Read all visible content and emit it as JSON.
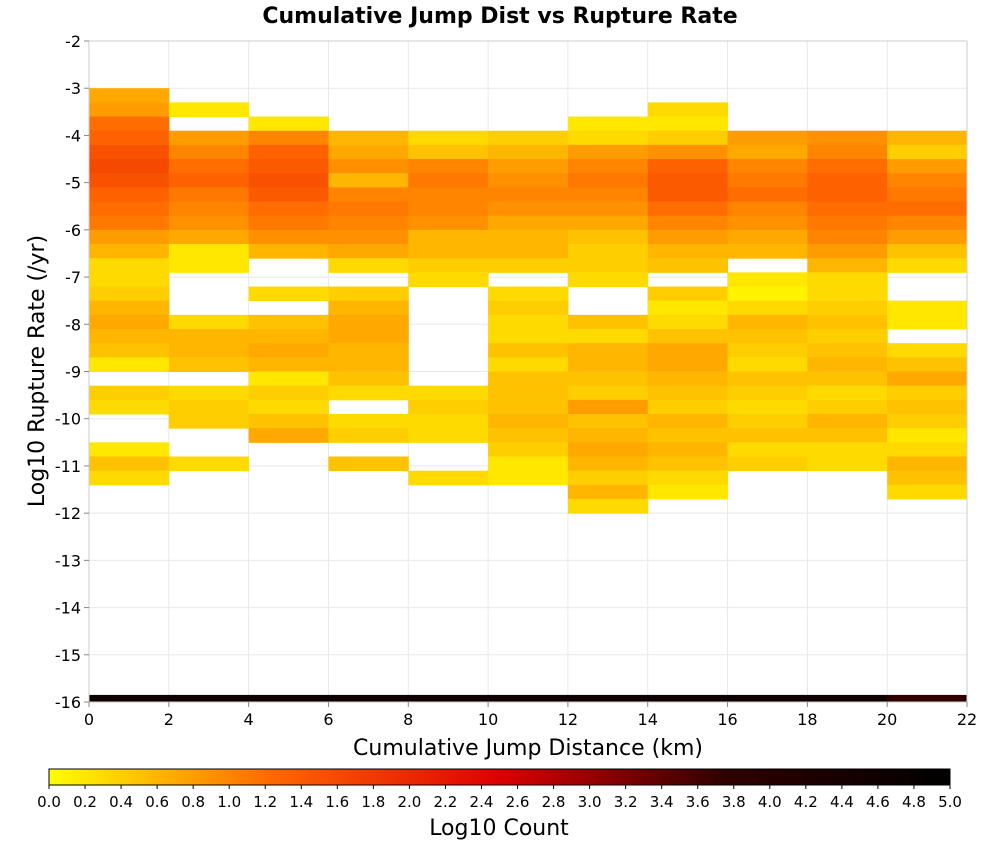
{
  "chart_data": {
    "type": "heatmap",
    "title": "Cumulative Jump Dist vs Rupture Rate",
    "xlabel": "Cumulative Jump Distance (km)",
    "ylabel": "Log10 Rupture Rate (/yr)",
    "colorbar_label": "Log10 Count",
    "xlim": [
      0,
      22
    ],
    "ylim": [
      -16,
      -2
    ],
    "xticks": [
      0,
      2,
      4,
      6,
      8,
      10,
      12,
      14,
      16,
      18,
      20,
      22
    ],
    "yticks": [
      -2,
      -3,
      -4,
      -5,
      -6,
      -7,
      -8,
      -9,
      -10,
      -11,
      -12,
      -13,
      -14,
      -15,
      -16
    ],
    "colorbar_range": [
      0,
      5
    ],
    "colorbar_ticks": [
      "0.0",
      "0.2",
      "0.4",
      "0.6",
      "0.8",
      "1.0",
      "1.2",
      "1.4",
      "1.6",
      "1.8",
      "2.0",
      "2.2",
      "2.4",
      "2.6",
      "2.8",
      "3.0",
      "3.2",
      "3.4",
      "3.6",
      "3.8",
      "4.0",
      "4.2",
      "4.4",
      "4.6",
      "4.8",
      "5.0"
    ],
    "colormap": [
      "#ffff00",
      "#ff6600",
      "#dd0000",
      "#300000",
      "#000000"
    ],
    "grid": true,
    "x_bin_width": 2,
    "y_bin_height": 0.3,
    "cells": [
      {
        "x": 0,
        "vals": [
          [
            -3.3,
            0.7
          ],
          [
            -3.6,
            0.8
          ],
          [
            -3.9,
            1.2
          ],
          [
            -4.2,
            1.3
          ],
          [
            -4.5,
            1.5
          ],
          [
            -4.8,
            1.6
          ],
          [
            -5.1,
            1.5
          ],
          [
            -5.4,
            1.3
          ],
          [
            -5.7,
            1.2
          ],
          [
            -6.0,
            1.1
          ],
          [
            -6.3,
            0.8
          ],
          [
            -6.6,
            0.6
          ],
          [
            -6.9,
            0.3
          ],
          [
            -7.2,
            0.3
          ],
          [
            -7.5,
            0.4
          ],
          [
            -7.8,
            0.6
          ],
          [
            -8.1,
            0.7
          ],
          [
            -8.4,
            0.6
          ],
          [
            -8.7,
            0.5
          ],
          [
            -9.0,
            0.2
          ],
          [
            -9.6,
            0.4
          ],
          [
            -9.9,
            0.3
          ],
          [
            -10.8,
            0.2
          ],
          [
            -11.1,
            0.5
          ],
          [
            -11.4,
            0.3
          ]
        ]
      },
      {
        "x": 2,
        "vals": [
          [
            -3.6,
            0.2
          ],
          [
            -4.2,
            0.8
          ],
          [
            -4.5,
            1.0
          ],
          [
            -4.8,
            1.2
          ],
          [
            -5.1,
            1.3
          ],
          [
            -5.4,
            1.1
          ],
          [
            -5.7,
            1.0
          ],
          [
            -6.0,
            0.9
          ],
          [
            -6.3,
            0.7
          ],
          [
            -6.6,
            0.2
          ],
          [
            -6.9,
            0.2
          ],
          [
            -8.1,
            0.3
          ],
          [
            -8.4,
            0.6
          ],
          [
            -8.7,
            0.6
          ],
          [
            -9.0,
            0.5
          ],
          [
            -9.6,
            0.3
          ],
          [
            -9.9,
            0.4
          ],
          [
            -10.2,
            0.4
          ],
          [
            -11.1,
            0.3
          ]
        ]
      },
      {
        "x": 4,
        "vals": [
          [
            -3.9,
            0.2
          ],
          [
            -4.2,
            1.0
          ],
          [
            -4.5,
            1.3
          ],
          [
            -4.8,
            1.4
          ],
          [
            -5.1,
            1.5
          ],
          [
            -5.4,
            1.4
          ],
          [
            -5.7,
            1.2
          ],
          [
            -6.0,
            1.1
          ],
          [
            -6.3,
            0.9
          ],
          [
            -6.6,
            0.6
          ],
          [
            -7.5,
            0.3
          ],
          [
            -8.1,
            0.5
          ],
          [
            -8.4,
            0.6
          ],
          [
            -8.7,
            0.7
          ],
          [
            -9.0,
            0.6
          ],
          [
            -9.3,
            0.2
          ],
          [
            -9.6,
            0.4
          ],
          [
            -9.9,
            0.3
          ],
          [
            -10.2,
            0.5
          ],
          [
            -10.5,
            0.7
          ]
        ]
      },
      {
        "x": 6,
        "vals": [
          [
            -4.2,
            0.6
          ],
          [
            -4.5,
            0.7
          ],
          [
            -4.8,
            0.9
          ],
          [
            -5.1,
            0.6
          ],
          [
            -5.4,
            1.0
          ],
          [
            -5.7,
            1.1
          ],
          [
            -6.0,
            1.0
          ],
          [
            -6.3,
            0.9
          ],
          [
            -6.6,
            0.7
          ],
          [
            -6.9,
            0.3
          ],
          [
            -7.5,
            0.4
          ],
          [
            -7.8,
            0.6
          ],
          [
            -8.1,
            0.7
          ],
          [
            -8.4,
            0.7
          ],
          [
            -8.7,
            0.6
          ],
          [
            -9.0,
            0.6
          ],
          [
            -9.3,
            0.5
          ],
          [
            -9.6,
            0.3
          ],
          [
            -10.2,
            0.3
          ],
          [
            -10.5,
            0.4
          ],
          [
            -11.1,
            0.5
          ]
        ]
      },
      {
        "x": 8,
        "vals": [
          [
            -4.2,
            0.3
          ],
          [
            -4.5,
            0.5
          ],
          [
            -4.8,
            1.0
          ],
          [
            -5.1,
            1.1
          ],
          [
            -5.4,
            1.0
          ],
          [
            -5.7,
            1.0
          ],
          [
            -6.0,
            0.9
          ],
          [
            -6.3,
            0.6
          ],
          [
            -6.6,
            0.6
          ],
          [
            -6.9,
            0.4
          ],
          [
            -7.2,
            0.3
          ],
          [
            -9.6,
            0.3
          ],
          [
            -9.9,
            0.4
          ],
          [
            -10.2,
            0.3
          ],
          [
            -10.5,
            0.3
          ],
          [
            -11.4,
            0.3
          ]
        ]
      },
      {
        "x": 10,
        "vals": [
          [
            -4.2,
            0.4
          ],
          [
            -4.5,
            0.6
          ],
          [
            -4.8,
            0.8
          ],
          [
            -5.1,
            0.9
          ],
          [
            -5.4,
            1.0
          ],
          [
            -5.7,
            0.9
          ],
          [
            -6.0,
            0.7
          ],
          [
            -6.3,
            0.6
          ],
          [
            -6.6,
            0.6
          ],
          [
            -6.9,
            0.4
          ],
          [
            -7.5,
            0.3
          ],
          [
            -7.8,
            0.4
          ],
          [
            -8.1,
            0.3
          ],
          [
            -8.4,
            0.3
          ],
          [
            -8.7,
            0.5
          ],
          [
            -9.0,
            0.3
          ],
          [
            -9.3,
            0.5
          ],
          [
            -9.6,
            0.5
          ],
          [
            -9.9,
            0.5
          ],
          [
            -10.2,
            0.6
          ],
          [
            -10.5,
            0.5
          ],
          [
            -10.8,
            0.4
          ],
          [
            -11.1,
            0.2
          ],
          [
            -11.4,
            0.2
          ]
        ]
      },
      {
        "x": 12,
        "vals": [
          [
            -3.9,
            0.2
          ],
          [
            -4.2,
            0.3
          ],
          [
            -4.5,
            0.8
          ],
          [
            -4.8,
            1.0
          ],
          [
            -5.1,
            1.1
          ],
          [
            -5.4,
            1.0
          ],
          [
            -5.7,
            0.9
          ],
          [
            -6.0,
            0.7
          ],
          [
            -6.3,
            0.5
          ],
          [
            -6.6,
            0.4
          ],
          [
            -6.9,
            0.4
          ],
          [
            -7.2,
            0.3
          ],
          [
            -8.1,
            0.5
          ],
          [
            -8.4,
            0.3
          ],
          [
            -8.7,
            0.6
          ],
          [
            -9.0,
            0.6
          ],
          [
            -9.3,
            0.5
          ],
          [
            -9.6,
            0.4
          ],
          [
            -9.9,
            0.8
          ],
          [
            -10.2,
            0.5
          ],
          [
            -10.5,
            0.6
          ],
          [
            -10.8,
            0.7
          ],
          [
            -11.1,
            0.6
          ],
          [
            -11.4,
            0.4
          ],
          [
            -11.7,
            0.6
          ],
          [
            -12.0,
            0.3
          ]
        ]
      },
      {
        "x": 14,
        "vals": [
          [
            -3.6,
            0.3
          ],
          [
            -3.9,
            0.2
          ],
          [
            -4.2,
            0.4
          ],
          [
            -4.5,
            0.9
          ],
          [
            -4.8,
            1.3
          ],
          [
            -5.1,
            1.4
          ],
          [
            -5.4,
            1.4
          ],
          [
            -5.7,
            1.2
          ],
          [
            -6.0,
            1.0
          ],
          [
            -6.3,
            0.8
          ],
          [
            -6.6,
            0.6
          ],
          [
            -6.9,
            0.5
          ],
          [
            -7.5,
            0.4
          ],
          [
            -7.8,
            0.2
          ],
          [
            -8.1,
            0.3
          ],
          [
            -8.4,
            0.5
          ],
          [
            -8.7,
            0.7
          ],
          [
            -9.0,
            0.7
          ],
          [
            -9.3,
            0.6
          ],
          [
            -9.6,
            0.5
          ],
          [
            -9.9,
            0.4
          ],
          [
            -10.2,
            0.6
          ],
          [
            -10.5,
            0.5
          ],
          [
            -10.8,
            0.6
          ],
          [
            -11.1,
            0.5
          ],
          [
            -11.4,
            0.3
          ],
          [
            -11.7,
            0.2
          ]
        ]
      },
      {
        "x": 16,
        "vals": [
          [
            -4.2,
            0.8
          ],
          [
            -4.5,
            0.7
          ],
          [
            -4.8,
            1.0
          ],
          [
            -5.1,
            1.1
          ],
          [
            -5.4,
            1.2
          ],
          [
            -5.7,
            1.0
          ],
          [
            -6.0,
            0.9
          ],
          [
            -6.3,
            0.7
          ],
          [
            -6.6,
            0.6
          ],
          [
            -7.2,
            0.2
          ],
          [
            -7.5,
            0.1
          ],
          [
            -7.8,
            0.3
          ],
          [
            -8.1,
            0.6
          ],
          [
            -8.4,
            0.5
          ],
          [
            -8.7,
            0.4
          ],
          [
            -9.0,
            0.3
          ],
          [
            -9.3,
            0.5
          ],
          [
            -9.6,
            0.4
          ],
          [
            -9.9,
            0.3
          ],
          [
            -10.2,
            0.4
          ],
          [
            -10.5,
            0.5
          ],
          [
            -10.8,
            0.3
          ],
          [
            -11.1,
            0.4
          ]
        ]
      },
      {
        "x": 18,
        "vals": [
          [
            -4.2,
            0.9
          ],
          [
            -4.5,
            1.0
          ],
          [
            -4.8,
            1.2
          ],
          [
            -5.1,
            1.3
          ],
          [
            -5.4,
            1.3
          ],
          [
            -5.7,
            1.2
          ],
          [
            -6.0,
            1.1
          ],
          [
            -6.3,
            1.0
          ],
          [
            -6.6,
            0.8
          ],
          [
            -6.9,
            0.6
          ],
          [
            -7.2,
            0.3
          ],
          [
            -7.5,
            0.3
          ],
          [
            -7.8,
            0.4
          ],
          [
            -8.1,
            0.5
          ],
          [
            -8.4,
            0.4
          ],
          [
            -8.7,
            0.5
          ],
          [
            -9.0,
            0.6
          ],
          [
            -9.3,
            0.5
          ],
          [
            -9.6,
            0.3
          ],
          [
            -9.9,
            0.4
          ],
          [
            -10.2,
            0.6
          ],
          [
            -10.5,
            0.5
          ],
          [
            -10.8,
            0.3
          ],
          [
            -11.1,
            0.3
          ]
        ]
      },
      {
        "x": 20,
        "vals": [
          [
            -4.2,
            0.6
          ],
          [
            -4.5,
            0.4
          ],
          [
            -4.8,
            0.8
          ],
          [
            -5.1,
            1.0
          ],
          [
            -5.4,
            1.1
          ],
          [
            -5.7,
            1.2
          ],
          [
            -6.0,
            1.0
          ],
          [
            -6.3,
            0.8
          ],
          [
            -6.6,
            0.5
          ],
          [
            -6.9,
            0.3
          ],
          [
            -7.8,
            0.2
          ],
          [
            -8.1,
            0.2
          ],
          [
            -8.7,
            0.3
          ],
          [
            -9.0,
            0.5
          ],
          [
            -9.3,
            0.7
          ],
          [
            -9.6,
            0.4
          ],
          [
            -9.9,
            0.5
          ],
          [
            -10.2,
            0.4
          ],
          [
            -10.5,
            0.2
          ],
          [
            -10.8,
            0.3
          ],
          [
            -11.1,
            0.6
          ],
          [
            -11.4,
            0.5
          ],
          [
            -11.7,
            0.3
          ]
        ]
      }
    ],
    "baseline_row": {
      "y": -16,
      "height": 0.15,
      "vals": [
        4.6,
        4.6,
        4.6,
        4.6,
        4.6,
        4.6,
        4.6,
        4.6,
        4.6,
        4.6,
        3.8
      ]
    }
  }
}
